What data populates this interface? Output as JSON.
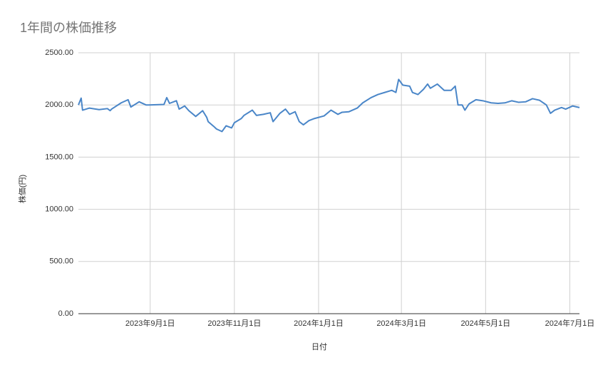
{
  "chart_data": {
    "type": "line",
    "title": "1年間の株価推移",
    "xlabel": "日付",
    "ylabel": "株価(円)",
    "x": [
      "2023-07-11",
      "2023-07-13",
      "2023-07-14",
      "2023-07-19",
      "2023-07-26",
      "2023-08-01",
      "2023-08-03",
      "2023-08-04",
      "2023-08-11",
      "2023-08-16",
      "2023-08-18",
      "2023-08-24",
      "2023-08-29",
      "2023-08-31",
      "2023-09-11",
      "2023-09-13",
      "2023-09-15",
      "2023-09-20",
      "2023-09-22",
      "2023-09-26",
      "2023-09-29",
      "2023-10-04",
      "2023-10-09",
      "2023-10-12",
      "2023-10-13",
      "2023-10-17",
      "2023-10-19",
      "2023-10-23",
      "2023-10-26",
      "2023-10-30",
      "2023-11-01",
      "2023-11-06",
      "2023-11-08",
      "2023-11-14",
      "2023-11-17",
      "2023-11-22",
      "2023-11-27",
      "2023-11-29",
      "2023-12-04",
      "2023-12-08",
      "2023-12-11",
      "2023-12-15",
      "2023-12-18",
      "2023-12-21",
      "2023-12-25",
      "2023-12-29",
      "2024-01-05",
      "2024-01-10",
      "2024-01-15",
      "2024-01-18",
      "2024-01-23",
      "2024-01-29",
      "2024-02-02",
      "2024-02-08",
      "2024-02-13",
      "2024-02-18",
      "2024-02-23",
      "2024-02-26",
      "2024-02-28",
      "2024-03-02",
      "2024-03-07",
      "2024-03-09",
      "2024-03-13",
      "2024-03-17",
      "2024-03-20",
      "2024-03-22",
      "2024-03-27",
      "2024-04-01",
      "2024-04-06",
      "2024-04-09",
      "2024-04-11",
      "2024-04-14",
      "2024-04-16",
      "2024-04-19",
      "2024-04-24",
      "2024-04-29",
      "2024-05-05",
      "2024-05-10",
      "2024-05-15",
      "2024-05-20",
      "2024-05-25",
      "2024-05-30",
      "2024-06-04",
      "2024-06-09",
      "2024-06-14",
      "2024-06-17",
      "2024-06-20",
      "2024-06-25",
      "2024-06-28",
      "2024-07-03",
      "2024-07-08"
    ],
    "series": [
      {
        "name": "株価(円)",
        "color": "#4a86c8",
        "values": [
          2000,
          2065,
          1950,
          1970,
          1955,
          1965,
          1945,
          1960,
          2020,
          2050,
          1980,
          2030,
          2000,
          2000,
          2005,
          2070,
          2015,
          2040,
          1960,
          1990,
          1945,
          1890,
          1945,
          1880,
          1840,
          1795,
          1770,
          1745,
          1800,
          1780,
          1830,
          1870,
          1900,
          1950,
          1900,
          1910,
          1925,
          1840,
          1920,
          1960,
          1910,
          1935,
          1840,
          1810,
          1850,
          1870,
          1895,
          1950,
          1910,
          1930,
          1935,
          1970,
          2020,
          2070,
          2100,
          2120,
          2140,
          2120,
          2245,
          2190,
          2180,
          2120,
          2100,
          2150,
          2200,
          2160,
          2200,
          2140,
          2140,
          2180,
          2000,
          2000,
          1950,
          2010,
          2050,
          2040,
          2020,
          2015,
          2020,
          2040,
          2025,
          2030,
          2060,
          2045,
          2000,
          1920,
          1950,
          1975,
          1960,
          1990,
          1975
        ]
      }
    ],
    "xlim": [
      "2023-07-11",
      "2024-07-08"
    ],
    "xticks": [
      {
        "value": "2023-09-01",
        "label": "2023年9月1日"
      },
      {
        "value": "2023-11-01",
        "label": "2023年11月1日"
      },
      {
        "value": "2024-01-01",
        "label": "2024年1月1日"
      },
      {
        "value": "2024-03-01",
        "label": "2024年3月1日"
      },
      {
        "value": "2024-05-01",
        "label": "2024年5月1日"
      },
      {
        "value": "2024-07-01",
        "label": "2024年7月1日"
      }
    ],
    "ylim": [
      0,
      2500
    ],
    "yticks": [
      {
        "value": 0,
        "label": "0.00"
      },
      {
        "value": 500,
        "label": "500.00"
      },
      {
        "value": 1000,
        "label": "1000.00"
      },
      {
        "value": 1500,
        "label": "1500.00"
      },
      {
        "value": 2000,
        "label": "2000.00"
      },
      {
        "value": 2500,
        "label": "2500.00"
      }
    ],
    "grid": true
  }
}
